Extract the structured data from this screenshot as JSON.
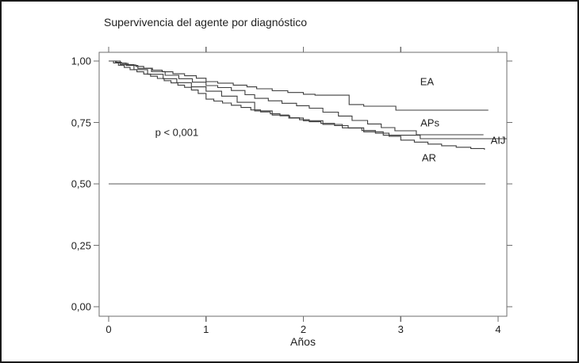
{
  "colors": {
    "background": "#ffffff",
    "border": "#1a1a1a",
    "frame_line": "#6e6e6e",
    "reference_line": "#5a5a5a",
    "curve_line": "#3d3d3d",
    "text": "#1f1f1f"
  },
  "chart_data": {
    "type": "line",
    "subtype": "kaplan-meier-step-survival",
    "title": "Supervivencia del agente por diagnóstico",
    "xlabel": "Años",
    "ylabel": "",
    "xlim": [
      0,
      4
    ],
    "ylim": [
      0.0,
      1.0
    ],
    "grid": false,
    "legend_position": "inline-labels",
    "x_ticks": [
      "0",
      "1",
      "2",
      "3",
      "4"
    ],
    "x_tick_values": [
      0,
      1,
      2,
      3,
      4
    ],
    "y_ticks": [
      "1,00",
      "0,75",
      "0,50",
      "0,25",
      "0,00"
    ],
    "y_tick_values": [
      1.0,
      0.75,
      0.5,
      0.25,
      0.0
    ],
    "reference_line": {
      "y": 0.5,
      "x_start": 0,
      "x_end": 3.87
    },
    "annotation": {
      "text": "p < 0,001",
      "x": 0.7,
      "y": 0.71
    },
    "series": [
      {
        "name": "EA",
        "label_x": 3.27,
        "label_y": 0.915,
        "final_value": 0.8,
        "points": [
          [
            0,
            1.0
          ],
          [
            0.07,
            0.995
          ],
          [
            0.13,
            0.99
          ],
          [
            0.2,
            0.984
          ],
          [
            0.28,
            0.978
          ],
          [
            0.36,
            0.971
          ],
          [
            0.45,
            0.963
          ],
          [
            0.55,
            0.956
          ],
          [
            0.66,
            0.948
          ],
          [
            0.78,
            0.94
          ],
          [
            0.9,
            0.93
          ],
          [
            1.0,
            0.916
          ],
          [
            1.12,
            0.91
          ],
          [
            1.28,
            0.902
          ],
          [
            1.42,
            0.895
          ],
          [
            1.52,
            0.887
          ],
          [
            1.68,
            0.879
          ],
          [
            1.84,
            0.872
          ],
          [
            2.0,
            0.865
          ],
          [
            2.12,
            0.861
          ],
          [
            2.47,
            0.823
          ],
          [
            2.62,
            0.816
          ],
          [
            2.95,
            0.8
          ],
          [
            3.9,
            0.8
          ]
        ]
      },
      {
        "name": "APs",
        "label_x": 3.3,
        "label_y": 0.748,
        "final_value": 0.7,
        "points": [
          [
            0,
            1.0
          ],
          [
            0.08,
            0.992
          ],
          [
            0.18,
            0.982
          ],
          [
            0.3,
            0.97
          ],
          [
            0.44,
            0.957
          ],
          [
            0.58,
            0.942
          ],
          [
            0.72,
            0.928
          ],
          [
            0.86,
            0.914
          ],
          [
            1.0,
            0.9
          ],
          [
            1.12,
            0.892
          ],
          [
            1.26,
            0.88
          ],
          [
            1.4,
            0.863
          ],
          [
            1.5,
            0.848
          ],
          [
            1.64,
            0.838
          ],
          [
            1.78,
            0.828
          ],
          [
            1.93,
            0.818
          ],
          [
            2.06,
            0.808
          ],
          [
            2.2,
            0.792
          ],
          [
            2.36,
            0.776
          ],
          [
            2.5,
            0.758
          ],
          [
            2.66,
            0.744
          ],
          [
            2.8,
            0.729
          ],
          [
            2.94,
            0.716
          ],
          [
            3.16,
            0.7
          ],
          [
            3.85,
            0.7
          ]
        ]
      },
      {
        "name": "AIJ",
        "label_x": 4.0,
        "label_y": 0.677,
        "final_value": 0.684,
        "points": [
          [
            0,
            1.0
          ],
          [
            0.12,
            0.985
          ],
          [
            0.26,
            0.965
          ],
          [
            0.4,
            0.946
          ],
          [
            0.56,
            0.928
          ],
          [
            0.7,
            0.912
          ],
          [
            0.85,
            0.895
          ],
          [
            1.0,
            0.877
          ],
          [
            1.16,
            0.857
          ],
          [
            1.32,
            0.832
          ],
          [
            1.5,
            0.797
          ],
          [
            1.68,
            0.78
          ],
          [
            1.85,
            0.768
          ],
          [
            2.0,
            0.757
          ],
          [
            2.2,
            0.742
          ],
          [
            2.4,
            0.728
          ],
          [
            2.62,
            0.712
          ],
          [
            2.82,
            0.698
          ],
          [
            3.2,
            0.684
          ],
          [
            4.09,
            0.684
          ]
        ]
      },
      {
        "name": "AR",
        "label_x": 3.29,
        "label_y": 0.607,
        "final_value": 0.639,
        "points": [
          [
            0,
            1.0
          ],
          [
            0.05,
            0.992
          ],
          [
            0.1,
            0.983
          ],
          [
            0.16,
            0.974
          ],
          [
            0.22,
            0.965
          ],
          [
            0.29,
            0.956
          ],
          [
            0.36,
            0.947
          ],
          [
            0.43,
            0.938
          ],
          [
            0.5,
            0.929
          ],
          [
            0.57,
            0.92
          ],
          [
            0.64,
            0.911
          ],
          [
            0.71,
            0.902
          ],
          [
            0.78,
            0.893
          ],
          [
            0.85,
            0.882
          ],
          [
            0.92,
            0.868
          ],
          [
            1.0,
            0.845
          ],
          [
            1.08,
            0.837
          ],
          [
            1.17,
            0.829
          ],
          [
            1.26,
            0.82
          ],
          [
            1.36,
            0.811
          ],
          [
            1.46,
            0.801
          ],
          [
            1.56,
            0.793
          ],
          [
            1.66,
            0.785
          ],
          [
            1.76,
            0.777
          ],
          [
            1.86,
            0.769
          ],
          [
            1.96,
            0.761
          ],
          [
            2.06,
            0.753
          ],
          [
            2.18,
            0.746
          ],
          [
            2.32,
            0.737
          ],
          [
            2.46,
            0.727
          ],
          [
            2.6,
            0.717
          ],
          [
            2.74,
            0.706
          ],
          [
            2.88,
            0.694
          ],
          [
            3.0,
            0.678
          ],
          [
            3.14,
            0.67
          ],
          [
            3.28,
            0.662
          ],
          [
            3.42,
            0.655
          ],
          [
            3.57,
            0.649
          ],
          [
            3.72,
            0.644
          ],
          [
            3.86,
            0.639
          ]
        ]
      }
    ]
  }
}
